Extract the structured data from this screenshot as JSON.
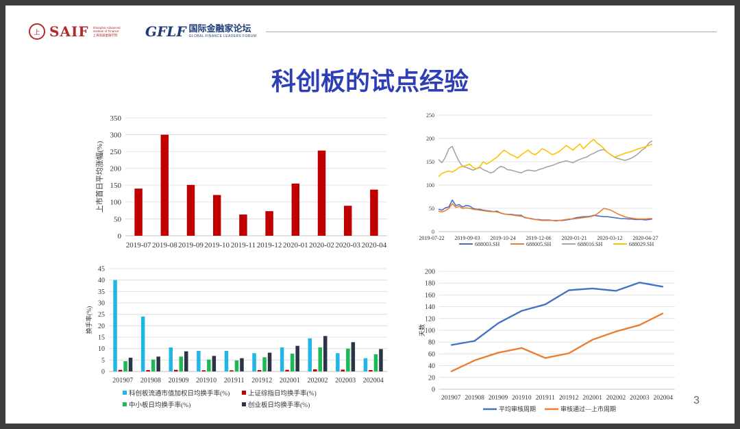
{
  "slide": {
    "title": "科创板的试点经验",
    "page_number": "3",
    "logos": {
      "saif_seal": "上",
      "saif_name": "SAIF",
      "saif_sub_lines": [
        "Shanghai Advanced",
        "Institute of Finance",
        "上海高级金融学院"
      ],
      "gflf_mark": "GFLF",
      "gflf_cn": "国际金融家论坛",
      "gflf_en": "GLOBAL FINANCE LEADERS FORUM"
    }
  },
  "chart_data": [
    {
      "type": "bar",
      "categories": [
        "2019-07",
        "2019-08",
        "2019-09",
        "2019-10",
        "2019-11",
        "2019-12",
        "2020-01",
        "2020-02",
        "2020-03",
        "2020-04"
      ],
      "series": [
        {
          "values": [
            140,
            300,
            151,
            121,
            63,
            73,
            155,
            253,
            89,
            137
          ]
        }
      ],
      "ylabel": "上市首日平均涨幅(%)",
      "ylim": [
        0,
        350
      ],
      "yticks": [
        0,
        50,
        100,
        150,
        200,
        250,
        300,
        350
      ],
      "grid": true,
      "colors": {
        "bar": "#c00000"
      }
    },
    {
      "type": "line",
      "xticks": [
        "2019-07-22",
        "2019-09-03",
        "2019-10-24",
        "2019-12-06",
        "2020-01-21",
        "2020-03-12",
        "2020-04-27"
      ],
      "ylim": [
        0,
        250
      ],
      "yticks": [
        0,
        50,
        100,
        150,
        200,
        250
      ],
      "grid": true,
      "legend": "bottom",
      "series": [
        {
          "name": "688003.SH",
          "color": "#4472c4",
          "values": [
            48,
            46,
            51,
            53,
            68,
            56,
            58,
            53,
            56,
            55,
            50,
            48,
            48,
            46,
            45,
            44,
            43,
            44,
            40,
            38,
            37,
            37,
            36,
            35,
            35,
            30,
            29,
            28,
            26,
            26,
            25,
            25,
            25,
            24,
            24,
            24,
            24,
            25,
            26,
            28,
            30,
            31,
            32,
            32,
            33,
            35,
            34,
            33,
            32,
            32,
            31,
            30,
            29,
            28,
            28,
            27,
            27,
            26,
            26,
            26,
            25,
            26,
            27
          ]
        },
        {
          "name": "688005.SH",
          "color": "#ed7d31",
          "values": [
            44,
            42,
            45,
            50,
            60,
            52,
            54,
            50,
            51,
            50,
            48,
            47,
            46,
            45,
            44,
            43,
            43,
            42,
            40,
            38,
            37,
            36,
            35,
            34,
            33,
            31,
            29,
            27,
            26,
            25,
            24,
            24,
            24,
            24,
            23,
            24,
            25,
            26,
            27,
            27,
            28,
            29,
            30,
            31,
            32,
            34,
            38,
            44,
            50,
            48,
            46,
            42,
            38,
            35,
            32,
            30,
            29,
            28,
            27,
            27,
            27,
            28,
            28
          ]
        },
        {
          "name": "688016.SH",
          "color": "#a5a5a5",
          "values": [
            155,
            148,
            160,
            178,
            183,
            165,
            150,
            140,
            138,
            135,
            132,
            135,
            138,
            133,
            130,
            126,
            128,
            135,
            140,
            138,
            133,
            132,
            130,
            128,
            126,
            130,
            132,
            131,
            130,
            133,
            135,
            138,
            140,
            142,
            145,
            148,
            150,
            152,
            150,
            148,
            152,
            155,
            158,
            160,
            165,
            168,
            172,
            175,
            176,
            170,
            165,
            160,
            157,
            155,
            153,
            155,
            158,
            162,
            168,
            175,
            180,
            190,
            195
          ]
        },
        {
          "name": "688029.SH",
          "color": "#ffc000",
          "values": [
            118,
            125,
            128,
            130,
            128,
            132,
            138,
            140,
            142,
            145,
            138,
            135,
            140,
            150,
            145,
            150,
            155,
            160,
            168,
            175,
            170,
            165,
            162,
            158,
            165,
            170,
            175,
            168,
            165,
            170,
            178,
            175,
            170,
            165,
            168,
            172,
            178,
            185,
            180,
            175,
            182,
            188,
            178,
            185,
            192,
            198,
            190,
            185,
            178,
            170,
            165,
            160,
            162,
            165,
            168,
            170,
            172,
            175,
            178,
            180,
            182,
            185,
            188
          ]
        }
      ]
    },
    {
      "type": "bar",
      "categories": [
        "201907",
        "201908",
        "201909",
        "201910",
        "201911",
        "201912",
        "202001",
        "202002",
        "202003",
        "202004"
      ],
      "ylabel": "换手率(%)",
      "ylim": [
        0,
        45
      ],
      "yticks": [
        0,
        5,
        10,
        15,
        20,
        25,
        30,
        35,
        40,
        45
      ],
      "grid": true,
      "legend": "bottom",
      "series": [
        {
          "name": "科创板流通市值加权日均换手率(%)",
          "color": "#20b6e6",
          "values": [
            40,
            24,
            10.5,
            9,
            9,
            8,
            10.5,
            14.5,
            8,
            5.8
          ]
        },
        {
          "name": "上证综指日均换手率(%)",
          "color": "#c00000",
          "values": [
            0.7,
            0.6,
            0.7,
            0.5,
            0.5,
            0.6,
            0.7,
            0.9,
            0.8,
            0.6
          ]
        },
        {
          "name": "中小板日均换手率(%)",
          "color": "#1db954",
          "values": [
            4.5,
            5.2,
            6.5,
            5.2,
            4.8,
            6.2,
            7.8,
            10.5,
            10,
            7.5
          ]
        },
        {
          "name": "创业板日均换手率(%)",
          "color": "#2b3547",
          "values": [
            6,
            6.5,
            8.8,
            6.8,
            5.8,
            8.2,
            11.2,
            15.5,
            12.8,
            9.8
          ]
        }
      ]
    },
    {
      "type": "line",
      "categories": [
        "201907",
        "201908",
        "201909",
        "201910",
        "201911",
        "201912",
        "202001",
        "202002",
        "202003",
        "202004"
      ],
      "ylabel": "天数",
      "ylim": [
        0,
        200
      ],
      "yticks": [
        0,
        20,
        40,
        60,
        80,
        100,
        120,
        140,
        160,
        180,
        200
      ],
      "grid": true,
      "legend": "bottom",
      "series": [
        {
          "name": "平均审核周期",
          "color": "#4472c4",
          "values": [
            75,
            82,
            112,
            133,
            144,
            168,
            171,
            167,
            181,
            174
          ]
        },
        {
          "name": "审核通过—上市周期",
          "color": "#ed7d31",
          "values": [
            30,
            49,
            62,
            70,
            53,
            61,
            84,
            98,
            109,
            129
          ]
        }
      ]
    }
  ]
}
